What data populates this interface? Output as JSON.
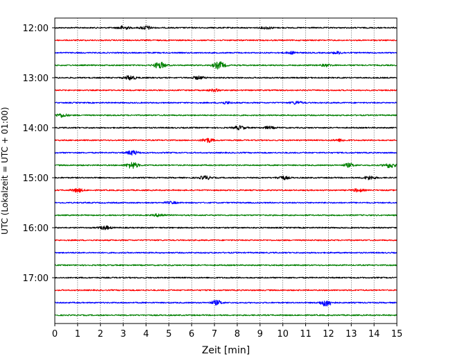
{
  "chart_data": {
    "type": "line",
    "title": "",
    "xlabel": "Zeit  [min]",
    "ylabel": "UTC (Lokalzeit = UTC + 01:00)",
    "xlim": [
      0,
      15
    ],
    "x_ticks": [
      "0",
      "1",
      "2",
      "3",
      "4",
      "5",
      "6",
      "7",
      "8",
      "9",
      "10",
      "11",
      "12",
      "13",
      "14",
      "15"
    ],
    "y_ticks": [
      "12:00",
      "13:00",
      "14:00",
      "15:00",
      "16:00",
      "17:00"
    ],
    "trace_start_times": [
      "12:00",
      "12:15",
      "12:30",
      "12:45",
      "13:00",
      "13:15",
      "13:30",
      "13:45",
      "14:00",
      "14:15",
      "14:30",
      "14:45",
      "15:00",
      "15:15",
      "15:30",
      "15:45",
      "16:00",
      "16:15",
      "16:30",
      "16:45",
      "17:00",
      "17:15",
      "17:30",
      "17:45"
    ],
    "trace_colors": [
      "#000000",
      "#ff0000",
      "#0000ff",
      "#008000"
    ],
    "grid": {
      "x": true,
      "y": false,
      "style": "dotted"
    },
    "bursts": [
      {
        "trace": 0,
        "at": 3.0,
        "amp": 2.5
      },
      {
        "trace": 0,
        "at": 4.0,
        "amp": 2.5
      },
      {
        "trace": 0,
        "at": 9.3,
        "amp": 1.5
      },
      {
        "trace": 2,
        "at": 10.4,
        "amp": 1.5
      },
      {
        "trace": 2,
        "at": 12.4,
        "amp": 1.5
      },
      {
        "trace": 3,
        "at": 4.6,
        "amp": 4.5
      },
      {
        "trace": 3,
        "at": 7.2,
        "amp": 5.0
      },
      {
        "trace": 3,
        "at": 11.9,
        "amp": 1.5
      },
      {
        "trace": 4,
        "at": 3.3,
        "amp": 3.0
      },
      {
        "trace": 4,
        "at": 6.3,
        "amp": 2.0
      },
      {
        "trace": 5,
        "at": 7.0,
        "amp": 1.5
      },
      {
        "trace": 6,
        "at": 10.6,
        "amp": 2.0
      },
      {
        "trace": 6,
        "at": 7.5,
        "amp": 1.5
      },
      {
        "trace": 7,
        "at": 0.3,
        "amp": 2.5
      },
      {
        "trace": 8,
        "at": 8.1,
        "amp": 2.5
      },
      {
        "trace": 8,
        "at": 9.4,
        "amp": 1.5
      },
      {
        "trace": 9,
        "at": 6.7,
        "amp": 3.0
      },
      {
        "trace": 9,
        "at": 12.5,
        "amp": 1.5
      },
      {
        "trace": 10,
        "at": 3.4,
        "amp": 3.0
      },
      {
        "trace": 11,
        "at": 3.4,
        "amp": 4.5
      },
      {
        "trace": 11,
        "at": 12.9,
        "amp": 2.5
      },
      {
        "trace": 11,
        "at": 14.7,
        "amp": 3.5
      },
      {
        "trace": 12,
        "at": 6.6,
        "amp": 2.5
      },
      {
        "trace": 12,
        "at": 10.0,
        "amp": 2.5
      },
      {
        "trace": 12,
        "at": 13.8,
        "amp": 2.5
      },
      {
        "trace": 13,
        "at": 1.0,
        "amp": 2.5
      },
      {
        "trace": 13,
        "at": 13.3,
        "amp": 2.0
      },
      {
        "trace": 14,
        "at": 5.1,
        "amp": 1.5
      },
      {
        "trace": 15,
        "at": 4.6,
        "amp": 2.0
      },
      {
        "trace": 16,
        "at": 2.2,
        "amp": 2.5
      },
      {
        "trace": 22,
        "at": 7.1,
        "amp": 3.0
      },
      {
        "trace": 22,
        "at": 11.9,
        "amp": 5.0
      }
    ]
  }
}
